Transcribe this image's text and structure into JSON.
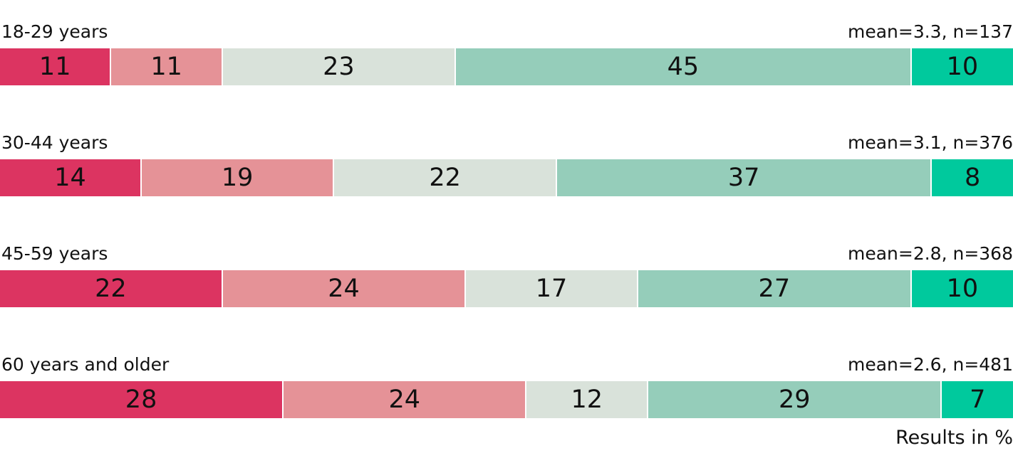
{
  "chart_data": {
    "type": "bar",
    "orientation": "horizontal-stacked-100",
    "categories": [
      "18-29 years",
      "30-44 years",
      "45-59 years",
      "60 years and older"
    ],
    "stats": [
      "mean=3.3, n=137",
      "mean=3.1, n=376",
      "mean=2.8, n=368",
      "mean=2.6, n=481"
    ],
    "series": [
      {
        "values": [
          11,
          14,
          22,
          28
        ],
        "color": "#dc3461"
      },
      {
        "values": [
          11,
          19,
          24,
          24
        ],
        "color": "#e59297"
      },
      {
        "values": [
          23,
          22,
          17,
          12
        ],
        "color": "#d9e2da"
      },
      {
        "values": [
          45,
          37,
          27,
          29
        ],
        "color": "#95cdba"
      },
      {
        "values": [
          10,
          8,
          10,
          7
        ],
        "color": "#00c99d"
      }
    ],
    "xlim": [
      0,
      100
    ],
    "grid": false,
    "footnote": "Results in %"
  }
}
